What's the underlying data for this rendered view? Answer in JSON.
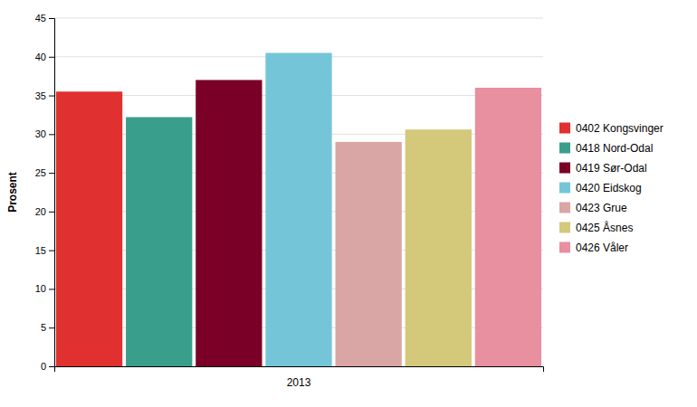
{
  "chart_data": {
    "type": "bar",
    "xlabel": "2013",
    "ylabel": "Prosent",
    "categories": [
      "0402 Kongsvinger",
      "0418 Nord-Odal",
      "0419 Sør-Odal",
      "0420 Eidskog",
      "0423 Grue",
      "0425 Åsnes",
      "0426 Våler"
    ],
    "values": [
      35.5,
      32.2,
      37.0,
      40.5,
      29.0,
      30.6,
      36.0
    ],
    "colors": [
      "#e03030",
      "#3a9e8c",
      "#7b0028",
      "#75c5d8",
      "#d9a5a5",
      "#d4c87a",
      "#e88fa0"
    ],
    "ylim": [
      0,
      45
    ],
    "yticks": [
      0,
      5,
      10,
      15,
      20,
      25,
      30,
      35,
      40,
      45
    ],
    "grid": true,
    "legend": "right"
  }
}
